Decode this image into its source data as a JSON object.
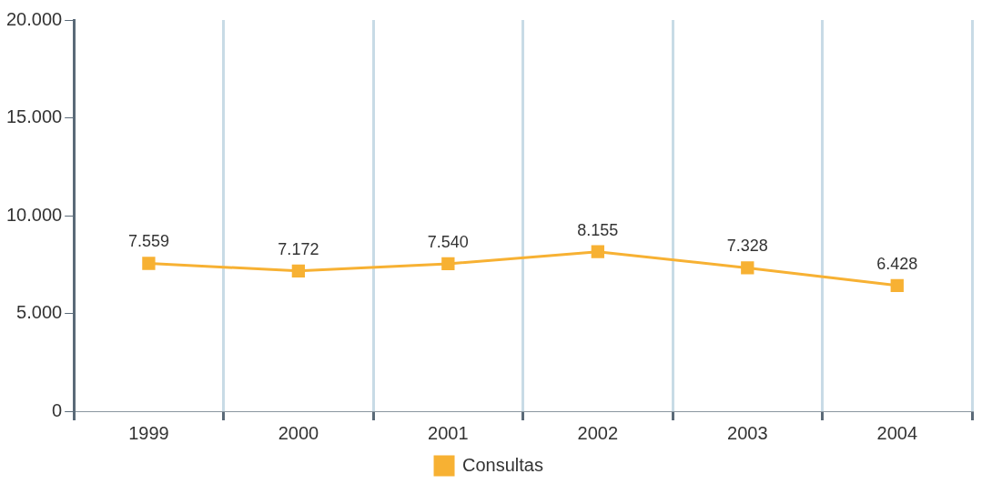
{
  "chart_data": {
    "type": "line",
    "categories": [
      "1999",
      "2000",
      "2001",
      "2002",
      "2003",
      "2004"
    ],
    "series": [
      {
        "name": "Consultas",
        "color": "#f7b133",
        "values": [
          7559,
          7172,
          7540,
          8155,
          7328,
          6428
        ],
        "value_labels": [
          "7.559",
          "7.172",
          "7.540",
          "8.155",
          "7.328",
          "6.428"
        ]
      }
    ],
    "ylim": [
      0,
      20000
    ],
    "yticks": [
      {
        "value": 0,
        "label": "0"
      },
      {
        "value": 5000,
        "label": "5.000"
      },
      {
        "value": 10000,
        "label": "10.000"
      },
      {
        "value": 15000,
        "label": "15.000"
      },
      {
        "value": 20000,
        "label": "20.000"
      }
    ],
    "grid": "x",
    "legend": "bottom",
    "marker": "square",
    "line_style": "solid"
  }
}
